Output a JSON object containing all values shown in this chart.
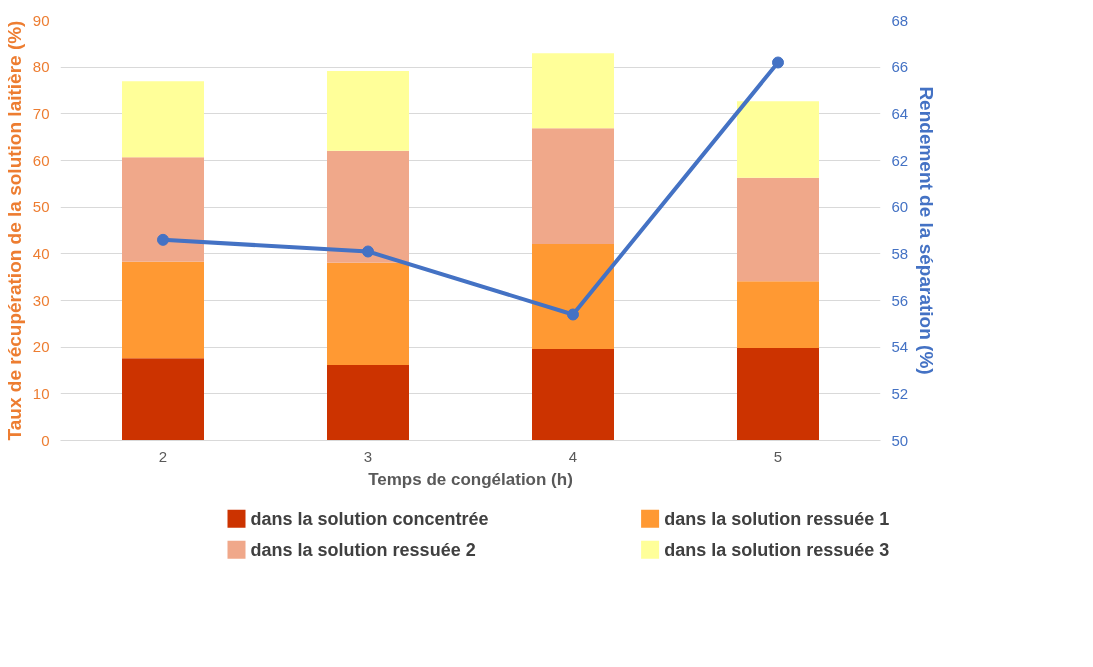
{
  "chart_data": {
    "type": "bar",
    "stacked": true,
    "xlabel": "Temps de congélation (h)",
    "ylabel": "Taux de récupération de la solution laitière (%)",
    "y2label": "Rendement de la séparation (%)",
    "categories": [
      "2",
      "3",
      "4",
      "5"
    ],
    "series": [
      {
        "name": "dans la solution concentrée",
        "color": "#cc3300",
        "values": [
          17.6,
          16.2,
          19.6,
          19.8
        ]
      },
      {
        "name": "dans la solution ressuée 1",
        "color": "#ff9933",
        "values": [
          20.7,
          21.9,
          22.5,
          14.3
        ]
      },
      {
        "name": "dans la solution ressuée 2",
        "color": "#f0a88a",
        "values": [
          22.4,
          24.0,
          24.8,
          22.2
        ]
      },
      {
        "name": "dans la solution ressuée 3",
        "color": "#ffff99",
        "values": [
          16.3,
          17.1,
          16.1,
          16.4
        ]
      },
      {
        "type": "line",
        "axis": "y2",
        "color": "#4472c4",
        "values": [
          58.6,
          58.1,
          55.4,
          66.2
        ]
      }
    ],
    "ylim": [
      0,
      90
    ],
    "yticks": [
      0,
      10,
      20,
      30,
      40,
      50,
      60,
      70,
      80,
      90
    ],
    "y2lim": [
      50,
      68
    ],
    "y2ticks": [
      50,
      52,
      54,
      56,
      58,
      60,
      62,
      64,
      66,
      68
    ],
    "grid": "y",
    "legend": "bottom",
    "marker": "circle",
    "line_style": "solid"
  }
}
